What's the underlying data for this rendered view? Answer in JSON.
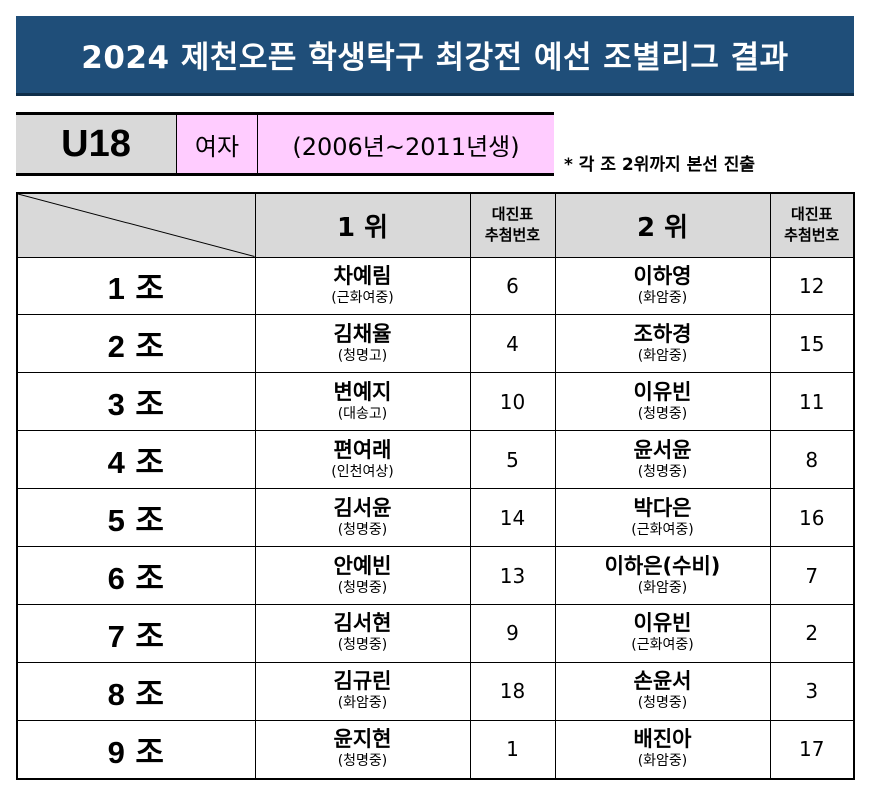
{
  "title": "2024 제천오픈 학생탁구 최강전 예선 조별리그 결과",
  "category": {
    "age": "U18",
    "gender": "여자",
    "years": "(2006년~2011년생)"
  },
  "note": "* 각 조 2위까지 본선 진출",
  "headers": {
    "first": "1 위",
    "second": "2 위",
    "draw_line1": "대진표",
    "draw_line2": "추첨번호"
  },
  "groups": [
    {
      "label": "1 조",
      "first": {
        "name": "차예림",
        "school": "(근화여중)",
        "draw": "6"
      },
      "second": {
        "name": "이하영",
        "school": "(화암중)",
        "draw": "12"
      }
    },
    {
      "label": "2 조",
      "first": {
        "name": "김채율",
        "school": "(청명고)",
        "draw": "4"
      },
      "second": {
        "name": "조하경",
        "school": "(화암중)",
        "draw": "15"
      }
    },
    {
      "label": "3 조",
      "first": {
        "name": "변예지",
        "school": "(대송고)",
        "draw": "10"
      },
      "second": {
        "name": "이유빈",
        "school": "(청명중)",
        "draw": "11"
      }
    },
    {
      "label": "4 조",
      "first": {
        "name": "편여래",
        "school": "(인천여상)",
        "draw": "5"
      },
      "second": {
        "name": "윤서윤",
        "school": "(청명중)",
        "draw": "8"
      }
    },
    {
      "label": "5 조",
      "first": {
        "name": "김서윤",
        "school": "(청명중)",
        "draw": "14"
      },
      "second": {
        "name": "박다은",
        "school": "(근화여중)",
        "draw": "16"
      }
    },
    {
      "label": "6 조",
      "first": {
        "name": "안예빈",
        "school": "(청명중)",
        "draw": "13"
      },
      "second": {
        "name": "이하은(수비)",
        "school": "(화암중)",
        "draw": "7"
      }
    },
    {
      "label": "7 조",
      "first": {
        "name": "김서현",
        "school": "(청명중)",
        "draw": "9"
      },
      "second": {
        "name": "이유빈",
        "school": "(근화여중)",
        "draw": "2"
      }
    },
    {
      "label": "8 조",
      "first": {
        "name": "김규린",
        "school": "(화암중)",
        "draw": "18"
      },
      "second": {
        "name": "손윤서",
        "school": "(청명중)",
        "draw": "3"
      }
    },
    {
      "label": "9 조",
      "first": {
        "name": "윤지현",
        "school": "(청명중)",
        "draw": "1"
      },
      "second": {
        "name": "배진아",
        "school": "(화암중)",
        "draw": "17"
      }
    }
  ]
}
